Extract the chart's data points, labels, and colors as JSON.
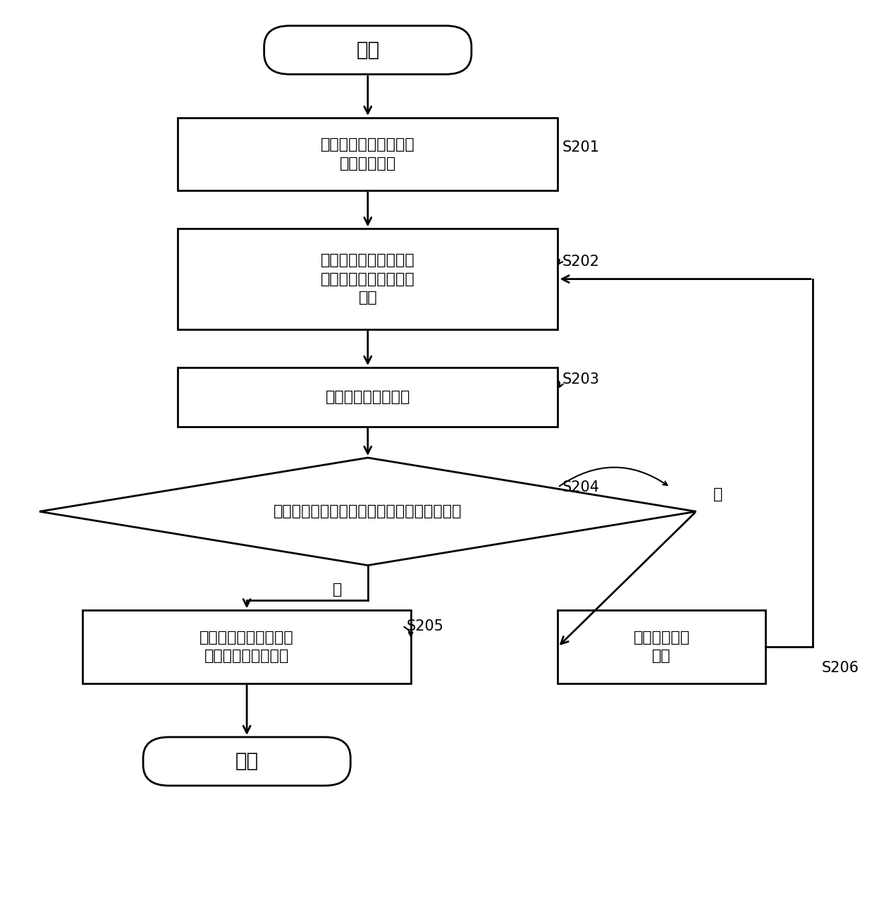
{
  "bg_color": "#ffffff",
  "box_color": "#ffffff",
  "box_edge": "#000000",
  "arrow_color": "#000000",
  "text_color": "#000000",
  "font_size": 16,
  "label_font_size": 15,
  "start_text": "开始",
  "end_text": "结束",
  "s201_text": "查询功率曲线，获得初\n设等效风速値",
  "s202_text": "计算预设等效风速处的\n气动转矩和气动转矩偏\n导値",
  "s203_text": "计算等效风速更新値",
  "s204_text": "等效风速初値和等效风速更新値相差小于阈値",
  "s205_text": "将等效风速更新値作为\n迭代求解的等效风速",
  "s206_text": "更新等效风预\n设値",
  "yes_text": "是",
  "no_text": "否",
  "labels": [
    "S201",
    "S202",
    "S203",
    "S204",
    "S205",
    "S206"
  ]
}
